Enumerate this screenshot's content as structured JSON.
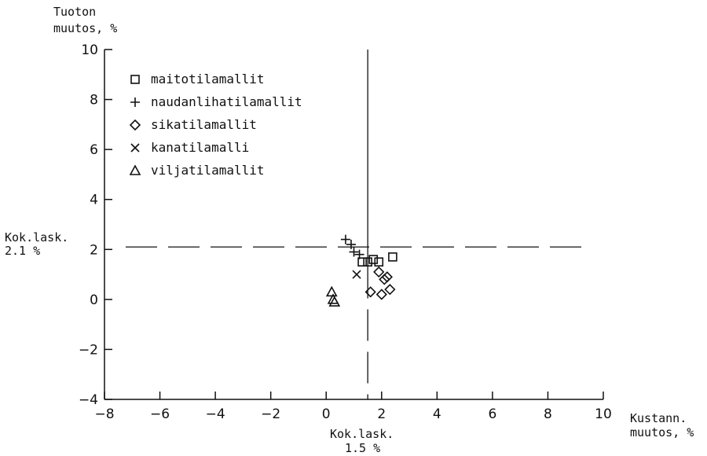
{
  "chart_data": {
    "type": "scatter",
    "ylabel": [
      "Tuoton",
      "muutos, %"
    ],
    "xlabel": [
      "Kustann.",
      "muutos, %"
    ],
    "xlim": [
      -8,
      10
    ],
    "ylim": [
      -4,
      10
    ],
    "x_ticks": [
      -8,
      -6,
      -4,
      -2,
      0,
      2,
      4,
      6,
      8,
      10
    ],
    "y_ticks": [
      -4,
      -2,
      0,
      2,
      4,
      6,
      8,
      10
    ],
    "grid": false,
    "legend_position": "top-left",
    "reference_lines": {
      "horizontal": {
        "value": 2.1,
        "label": [
          "Kok.lask.",
          "2.1 %"
        ],
        "style": "dashed"
      },
      "vertical_dashed": {
        "value": 1.5,
        "label": [
          "Kok.lask.",
          "1.5 %"
        ],
        "style": "dashed"
      },
      "vertical_solid": {
        "value": 1.5,
        "style": "solid"
      }
    },
    "series": [
      {
        "name": "maitotilamallit",
        "marker": "square",
        "points": [
          [
            1.3,
            1.5
          ],
          [
            1.5,
            1.5
          ],
          [
            1.7,
            1.6
          ],
          [
            1.9,
            1.5
          ],
          [
            2.4,
            1.7
          ]
        ]
      },
      {
        "name": "naudanlihatilamallit",
        "marker": "plus",
        "points": [
          [
            0.7,
            2.4
          ],
          [
            0.9,
            2.2
          ],
          [
            1.0,
            1.9
          ],
          [
            1.2,
            1.8
          ]
        ]
      },
      {
        "name": "sikatilamallit",
        "marker": "diamond",
        "points": [
          [
            1.6,
            0.3
          ],
          [
            1.9,
            1.1
          ],
          [
            2.0,
            0.2
          ],
          [
            2.1,
            0.8
          ],
          [
            2.2,
            0.9
          ],
          [
            2.3,
            0.4
          ]
        ]
      },
      {
        "name": "kanatilamalli",
        "marker": "x",
        "points": [
          [
            1.1,
            1.0
          ]
        ]
      },
      {
        "name": "viljatilamallit",
        "marker": "triangle",
        "points": [
          [
            0.2,
            0.3
          ],
          [
            0.25,
            0.0
          ],
          [
            0.3,
            -0.1
          ]
        ]
      }
    ]
  }
}
